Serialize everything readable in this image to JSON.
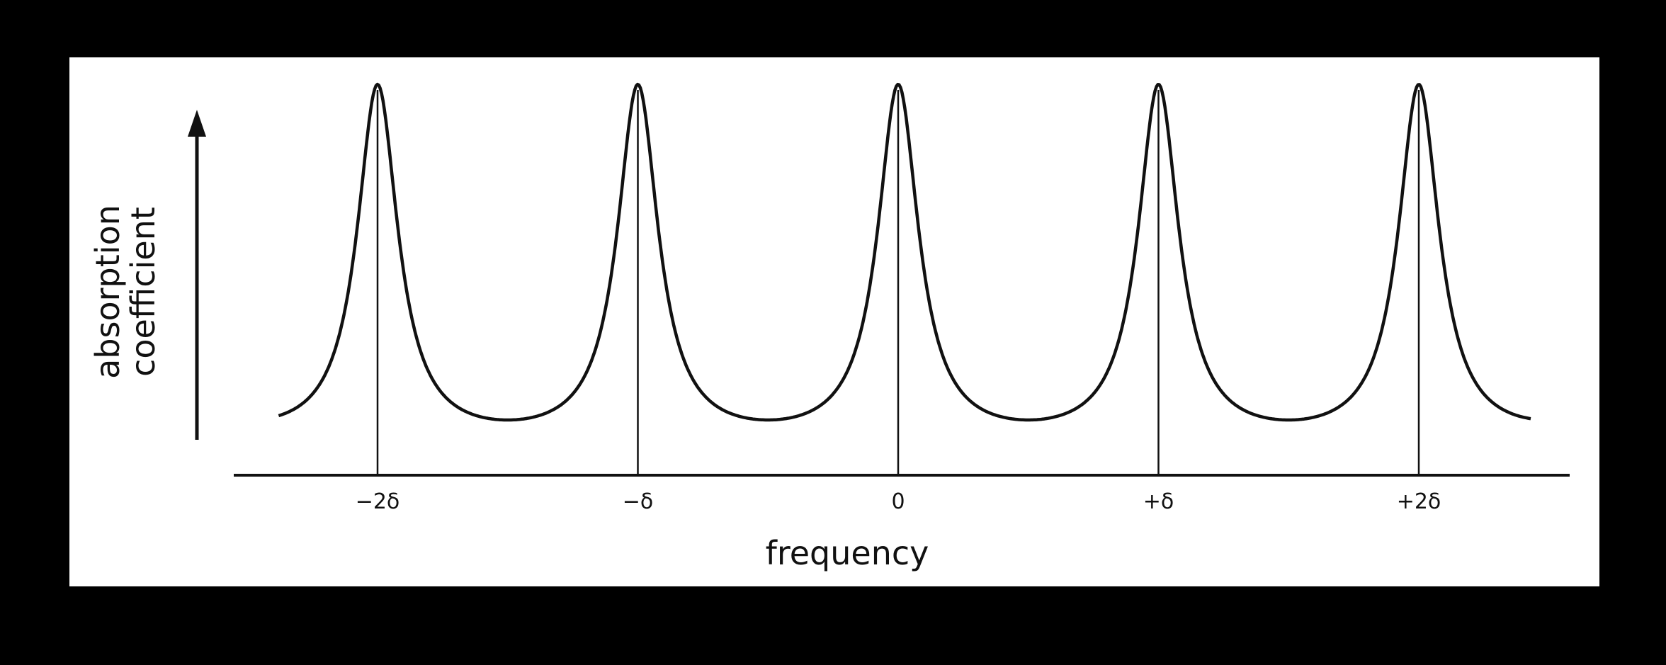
{
  "chart_data": {
    "type": "line",
    "title": "",
    "xlabel": "frequency",
    "ylabel_lines": [
      "absorption",
      "coefficient"
    ],
    "x_ticks": [
      {
        "value": -2,
        "label": "−2δ"
      },
      {
        "value": -1,
        "label": "−δ"
      },
      {
        "value": 0,
        "label": "0"
      },
      {
        "value": 1,
        "label": "+δ"
      },
      {
        "value": 2,
        "label": "+2δ"
      }
    ],
    "xlim": [
      -2.6,
      2.6
    ],
    "line_positions": [
      -2,
      -1,
      0,
      1,
      2
    ],
    "y_scale": "arbitrary",
    "grid": false,
    "colors": {
      "ink": "#111111",
      "paper": "#ffffff",
      "frame": "#000000"
    }
  }
}
